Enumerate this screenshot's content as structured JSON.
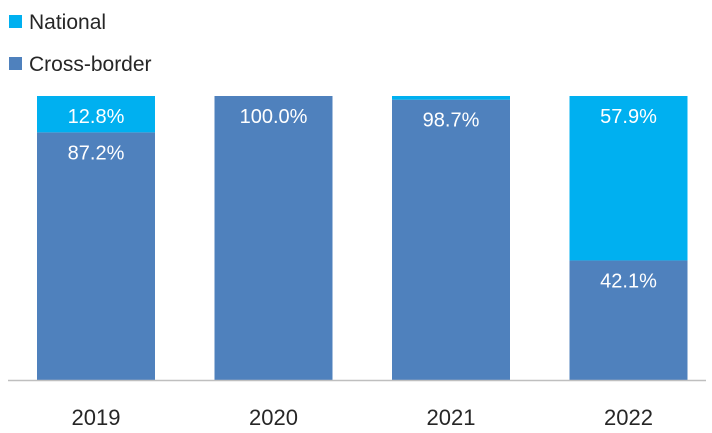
{
  "chart_data": {
    "type": "bar",
    "stacked": true,
    "percent_stacked": true,
    "categories": [
      "2019",
      "2020",
      "2021",
      "2022"
    ],
    "series": [
      {
        "name": "Cross-border",
        "color": "#4f81bd",
        "values": [
          87.2,
          100.0,
          98.7,
          42.1
        ],
        "labels": [
          "87.2%",
          "100.0%",
          "98.7%",
          "42.1%"
        ]
      },
      {
        "name": "National",
        "color": "#00b0f0",
        "values": [
          12.8,
          0.0,
          1.3,
          57.9
        ],
        "labels": [
          "12.8%",
          "",
          "",
          "57.9%"
        ]
      }
    ],
    "title": "",
    "xlabel": "",
    "ylabel": "",
    "ylim": [
      0,
      100
    ],
    "grid": false,
    "legend": "top-left",
    "legend_order": [
      "National",
      "Cross-border"
    ]
  }
}
